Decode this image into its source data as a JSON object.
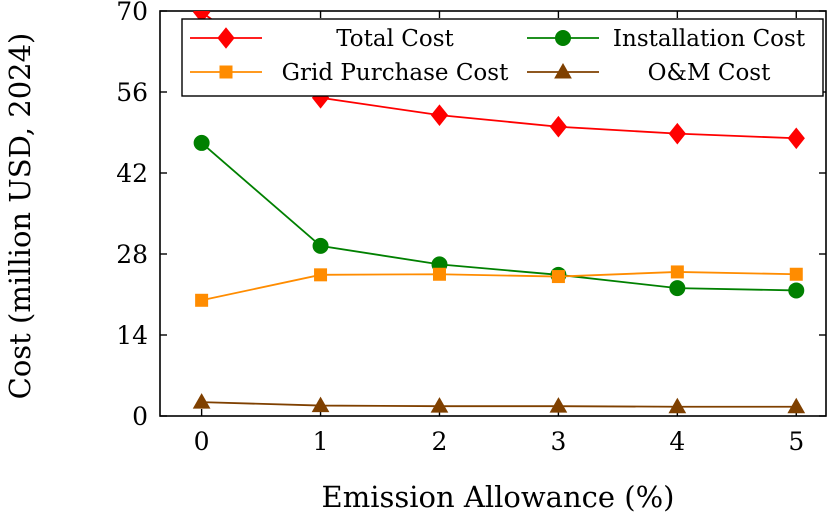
{
  "chart_data": {
    "type": "line",
    "title": "",
    "xlabel": "Emission Allowance (%)",
    "ylabel": "Cost (million USD, 2024)",
    "x": [
      0,
      1,
      2,
      3,
      4,
      5
    ],
    "x_ticks": [
      "0",
      "1",
      "2",
      "3",
      "4",
      "5"
    ],
    "y_ticks": [
      "0",
      "14",
      "28",
      "42",
      "56",
      "70"
    ],
    "xlim": [
      -0.35,
      5.25
    ],
    "ylim": [
      0,
      70
    ],
    "grid": false,
    "legend_position": "top",
    "series": [
      {
        "name": "Total Cost",
        "values": [
          69.8,
          55.0,
          52.0,
          50.0,
          48.8,
          48.0
        ],
        "color": "#ff0000",
        "marker": "diamond"
      },
      {
        "name": "Installation Cost",
        "values": [
          47.2,
          29.4,
          26.2,
          24.4,
          22.1,
          21.7
        ],
        "color": "#008000",
        "marker": "circle"
      },
      {
        "name": "Grid Purchase Cost",
        "values": [
          20.0,
          24.4,
          24.5,
          24.1,
          24.9,
          24.5
        ],
        "color": "#ff8c00",
        "marker": "square"
      },
      {
        "name": "O&M Cost",
        "values": [
          2.4,
          1.8,
          1.7,
          1.7,
          1.6,
          1.6
        ],
        "color": "#7f4000",
        "marker": "triangle"
      }
    ]
  }
}
